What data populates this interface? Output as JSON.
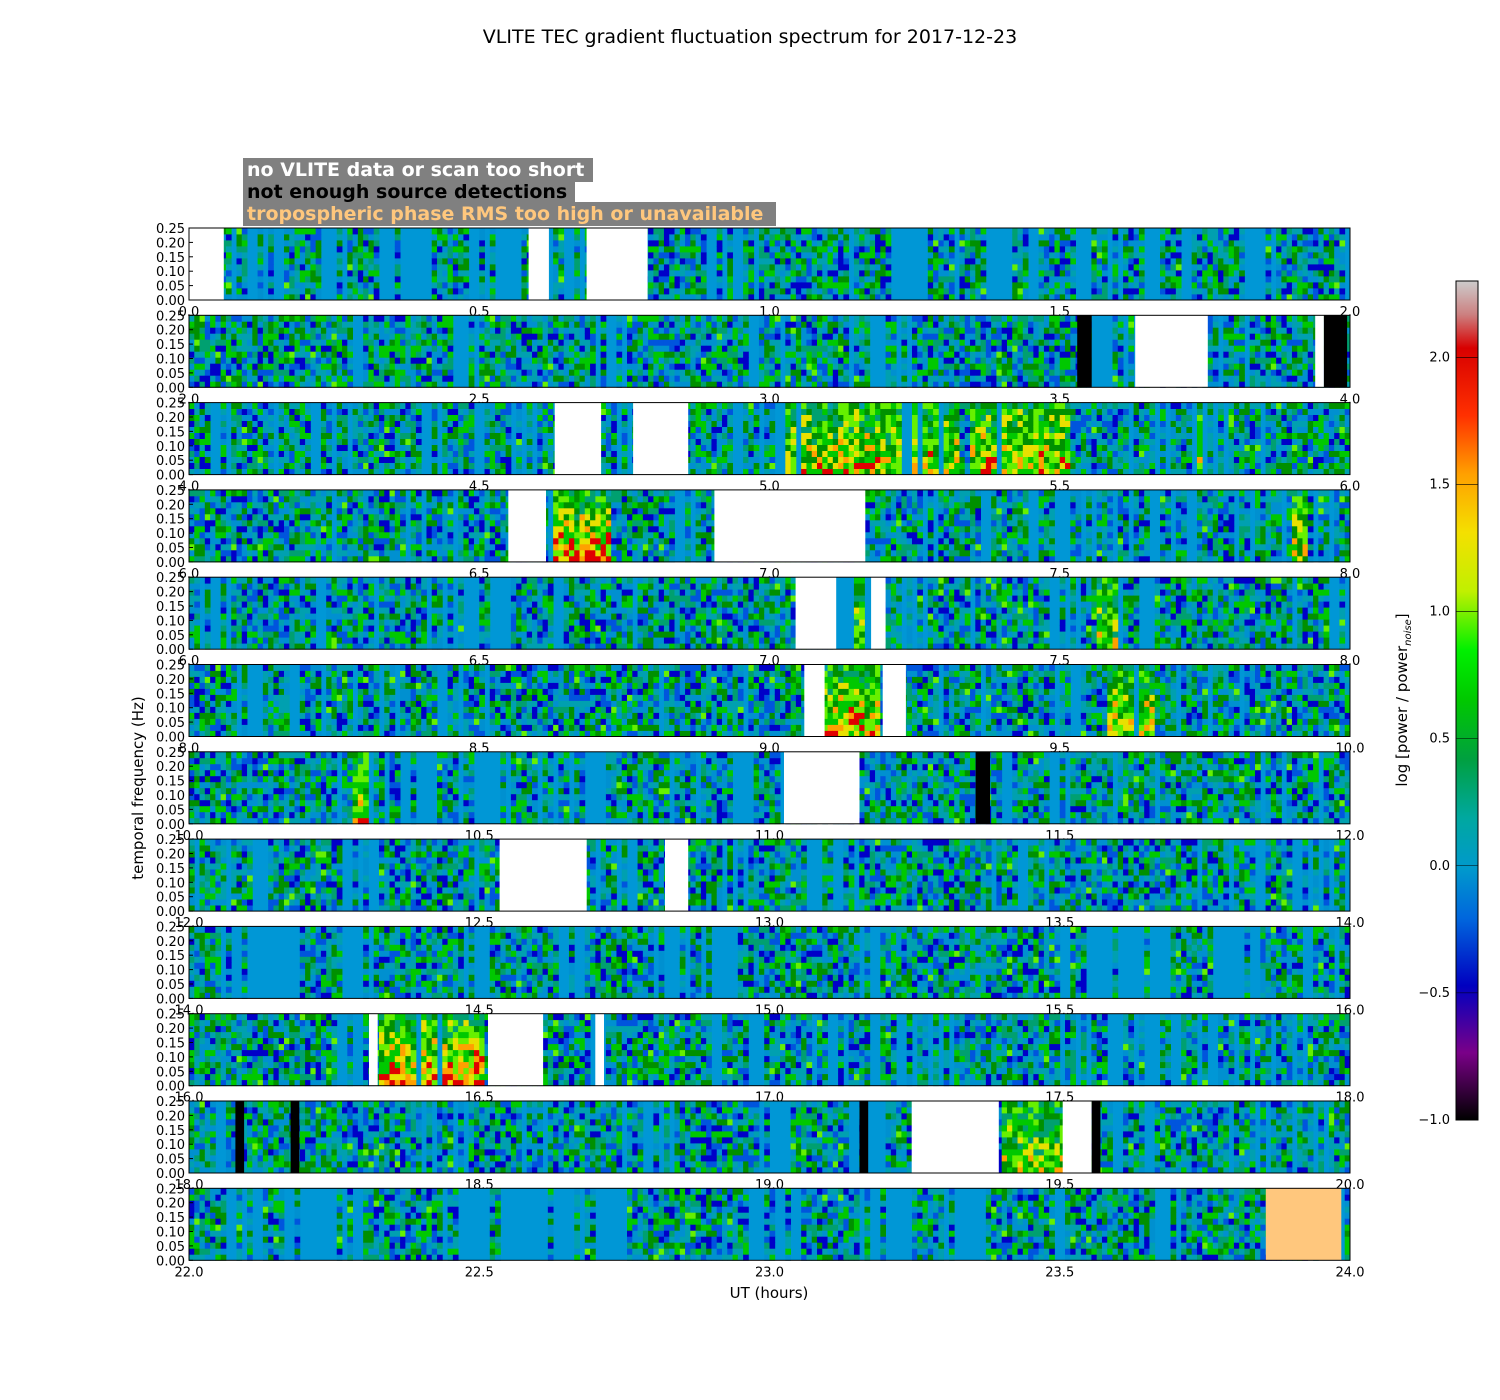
{
  "chart_data": {
    "type": "heatmap",
    "title": "VLITE TEC gradient fluctuation spectrum for 2017-12-23",
    "xlabel": "UT (hours)",
    "ylabel": "temporal frequency (Hz)",
    "ylim": [
      0.0,
      0.25
    ],
    "yticks": [
      "0.00",
      "0.05",
      "0.10",
      "0.15",
      "0.20",
      "0.25"
    ],
    "colorbar": {
      "label_prefix": "log [power / power",
      "label_sub": "noise",
      "label_suffix": "]",
      "range": [
        -1.0,
        2.3
      ],
      "ticks": [
        "−1.0",
        "−0.5",
        "0.0",
        "0.5",
        "1.0",
        "1.5",
        "2.0"
      ],
      "colormap": "nipy_spectral"
    },
    "legend": {
      "placement": "top-left",
      "items": [
        {
          "label": "no VLITE data or scan too short",
          "text_color": "#ffffff",
          "mask_color": "#ffffff"
        },
        {
          "label": "not enough source detections",
          "text_color": "#000000",
          "mask_color": "#000000"
        },
        {
          "label": "tropospheric phase RMS too high or unavailable",
          "text_color": "#ffc77d",
          "mask_color": "#ffc77d"
        }
      ],
      "box_color": "#808080"
    },
    "rows": [
      {
        "x_range": [
          0.0,
          2.0
        ],
        "xticks": [
          "0.0",
          "0.5",
          "1.0",
          "1.5",
          "2.0"
        ],
        "masks": [
          {
            "from": 0.0,
            "to": 0.06,
            "kind": "white"
          },
          {
            "from": 0.585,
            "to": 0.62,
            "kind": "white"
          },
          {
            "from": 0.685,
            "to": 0.79,
            "kind": "white"
          }
        ],
        "hot": [],
        "baseline_frac": 0.5
      },
      {
        "x_range": [
          2.0,
          4.0
        ],
        "xticks": [
          "2.0",
          "2.5",
          "3.0",
          "3.5",
          "4.0"
        ],
        "masks": [
          {
            "from": 3.53,
            "to": 3.555,
            "kind": "black"
          },
          {
            "from": 3.63,
            "to": 3.755,
            "kind": "white"
          },
          {
            "from": 3.94,
            "to": 3.955,
            "kind": "white"
          },
          {
            "from": 3.955,
            "to": 3.995,
            "kind": "black"
          }
        ],
        "hot": [],
        "baseline_frac": 0.35
      },
      {
        "x_range": [
          4.0,
          6.0
        ],
        "xticks": [
          "4.0",
          "4.5",
          "5.0",
          "5.5",
          "6.0"
        ],
        "masks": [
          {
            "from": 4.63,
            "to": 4.71,
            "kind": "white"
          },
          {
            "from": 4.765,
            "to": 4.86,
            "kind": "white"
          }
        ],
        "hot": [
          {
            "from": 5.02,
            "to": 5.33,
            "level": 0.55
          },
          {
            "from": 5.35,
            "to": 5.52,
            "level": 0.6
          },
          {
            "from": 5.73,
            "to": 5.75,
            "level": 0.4
          }
        ],
        "baseline_frac": 0.3
      },
      {
        "x_range": [
          6.0,
          8.0
        ],
        "xticks": [
          "6.0",
          "6.5",
          "7.0",
          "7.5",
          "8.0"
        ],
        "masks": [
          {
            "from": 6.55,
            "to": 6.615,
            "kind": "white"
          },
          {
            "from": 6.905,
            "to": 7.165,
            "kind": "white"
          }
        ],
        "hot": [
          {
            "from": 6.615,
            "to": 6.73,
            "level": 0.8
          },
          {
            "from": 7.9,
            "to": 7.93,
            "level": 0.45
          }
        ],
        "baseline_frac": 0.35
      },
      {
        "x_range": [
          6.0,
          8.0
        ],
        "xticks": [
          "6.0",
          "6.5",
          "7.0",
          "7.5",
          "8.0"
        ],
        "masks": [
          {
            "from": 7.045,
            "to": 7.115,
            "kind": "white"
          },
          {
            "from": 7.175,
            "to": 7.2,
            "kind": "white"
          }
        ],
        "hot": [
          {
            "from": 7.115,
            "to": 7.175,
            "level": 0.45
          },
          {
            "from": 7.56,
            "to": 7.6,
            "level": 0.35
          }
        ],
        "baseline_frac": 0.4
      },
      {
        "x_range": [
          8.0,
          10.0
        ],
        "xticks": [
          "8.0",
          "8.5",
          "9.0",
          "9.5",
          "10.0"
        ],
        "masks": [
          {
            "from": 9.06,
            "to": 9.095,
            "kind": "white"
          },
          {
            "from": 9.195,
            "to": 9.235,
            "kind": "white"
          }
        ],
        "hot": [
          {
            "from": 9.095,
            "to": 9.195,
            "level": 0.7
          },
          {
            "from": 9.58,
            "to": 9.66,
            "level": 0.5
          }
        ],
        "baseline_frac": 0.3
      },
      {
        "x_range": [
          10.0,
          12.0
        ],
        "xticks": [
          "10.0",
          "10.5",
          "11.0",
          "11.5",
          "12.0"
        ],
        "masks": [
          {
            "from": 11.025,
            "to": 11.155,
            "kind": "white"
          },
          {
            "from": 11.355,
            "to": 11.38,
            "kind": "black"
          }
        ],
        "hot": [
          {
            "from": 10.28,
            "to": 10.31,
            "level": 0.55
          }
        ],
        "baseline_frac": 0.35
      },
      {
        "x_range": [
          12.0,
          14.0
        ],
        "xticks": [
          "12.0",
          "12.5",
          "13.0",
          "13.5",
          "14.0"
        ],
        "masks": [
          {
            "from": 12.535,
            "to": 12.685,
            "kind": "white"
          },
          {
            "from": 12.82,
            "to": 12.86,
            "kind": "white"
          }
        ],
        "hot": [],
        "baseline_frac": 0.35
      },
      {
        "x_range": [
          14.0,
          16.0
        ],
        "xticks": [
          "14.0",
          "14.5",
          "15.0",
          "15.5",
          "16.0"
        ],
        "masks": [],
        "hot": [],
        "baseline_frac": 0.55
      },
      {
        "x_range": [
          16.0,
          18.0
        ],
        "xticks": [
          "16.0",
          "16.5",
          "17.0",
          "17.5",
          "18.0"
        ],
        "masks": [
          {
            "from": 16.31,
            "to": 16.325,
            "kind": "white"
          },
          {
            "from": 16.515,
            "to": 16.61,
            "kind": "white"
          },
          {
            "from": 16.7,
            "to": 16.715,
            "kind": "white"
          }
        ],
        "hot": [
          {
            "from": 16.33,
            "to": 16.505,
            "level": 0.8
          }
        ],
        "baseline_frac": 0.4
      },
      {
        "x_range": [
          18.0,
          20.0
        ],
        "xticks": [
          "18.0",
          "18.5",
          "19.0",
          "19.5",
          "20.0"
        ],
        "masks": [
          {
            "from": 18.08,
            "to": 18.095,
            "kind": "black"
          },
          {
            "from": 18.175,
            "to": 18.19,
            "kind": "black"
          },
          {
            "from": 19.155,
            "to": 19.17,
            "kind": "black"
          },
          {
            "from": 19.245,
            "to": 19.395,
            "kind": "white"
          },
          {
            "from": 19.505,
            "to": 19.555,
            "kind": "white"
          },
          {
            "from": 19.555,
            "to": 19.57,
            "kind": "black"
          }
        ],
        "hot": [
          {
            "from": 19.4,
            "to": 19.505,
            "level": 0.45
          }
        ],
        "baseline_frac": 0.35
      },
      {
        "x_range": [
          22.0,
          24.0
        ],
        "xticks": [
          "22.0",
          "22.5",
          "23.0",
          "23.5",
          "24.0"
        ],
        "masks": [
          {
            "from": 23.855,
            "to": 23.985,
            "kind": "orange"
          }
        ],
        "hot": [],
        "baseline_frac": 0.7
      }
    ]
  }
}
